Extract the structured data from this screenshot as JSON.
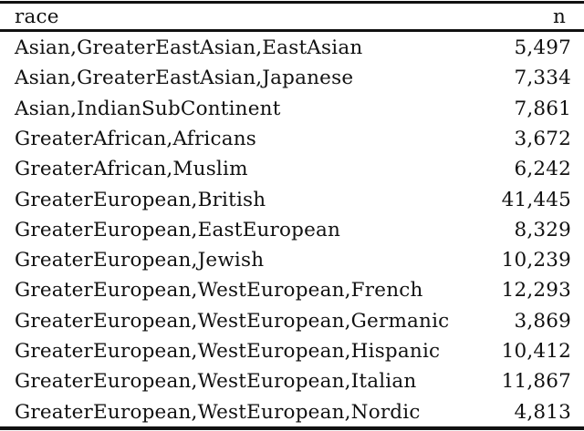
{
  "table": {
    "headers": {
      "race": "race",
      "n": "n"
    },
    "rows": [
      {
        "race": "Asian,GreaterEastAsian,EastAsian",
        "n": "5,497"
      },
      {
        "race": "Asian,GreaterEastAsian,Japanese",
        "n": "7,334"
      },
      {
        "race": "Asian,IndianSubContinent",
        "n": "7,861"
      },
      {
        "race": "GreaterAfrican,Africans",
        "n": "3,672"
      },
      {
        "race": "GreaterAfrican,Muslim",
        "n": "6,242"
      },
      {
        "race": "GreaterEuropean,British",
        "n": "41,445"
      },
      {
        "race": "GreaterEuropean,EastEuropean",
        "n": "8,329"
      },
      {
        "race": "GreaterEuropean,Jewish",
        "n": "10,239"
      },
      {
        "race": "GreaterEuropean,WestEuropean,French",
        "n": "12,293"
      },
      {
        "race": "GreaterEuropean,WestEuropean,Germanic",
        "n": "3,869"
      },
      {
        "race": "GreaterEuropean,WestEuropean,Hispanic",
        "n": "10,412"
      },
      {
        "race": "GreaterEuropean,WestEuropean,Italian",
        "n": "11,867"
      },
      {
        "race": "GreaterEuropean,WestEuropean,Nordic",
        "n": "4,813"
      }
    ]
  }
}
